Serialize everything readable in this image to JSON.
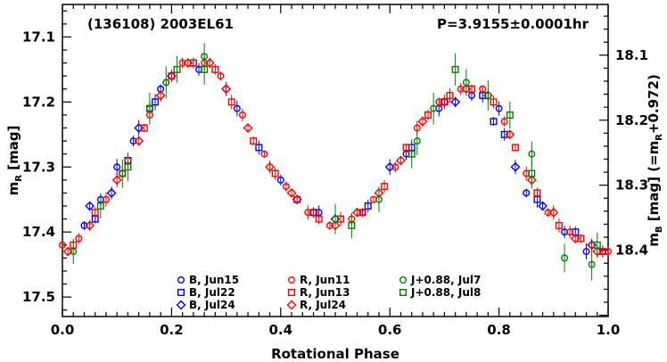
{
  "chart_data": {
    "type": "scatter",
    "annotations": {
      "object": "(136108) 2003EL61",
      "period": "P=3.9155±0.0001hr"
    },
    "xlabel": "Rotational Phase",
    "ylabel_left": {
      "main": "m",
      "sub": "R",
      "rest": " [mag]"
    },
    "ylabel_right": {
      "main": "m",
      "sub": "B",
      "rest": " [mag]  (=m",
      "sub2": "R",
      "rest2": "+0.972)"
    },
    "xlim": [
      0.0,
      1.0
    ],
    "ylim_left": [
      17.53,
      17.05
    ],
    "ylim_right": [
      18.502,
      18.022
    ],
    "x_ticks": [
      "0.0",
      "0.2",
      "0.4",
      "0.6",
      "0.8",
      "1.0"
    ],
    "y_ticks_left": [
      "17.1",
      "17.2",
      "17.3",
      "17.4",
      "17.5"
    ],
    "y_ticks_right": [
      "18.1",
      "18.2",
      "18.3",
      "18.4"
    ],
    "grid": false,
    "legend_placement": "bottom-center",
    "series": [
      {
        "name": "B, Jun15",
        "band": "B",
        "marker": "circle",
        "color": "#0000ff",
        "x": [
          0.04,
          0.07,
          0.1,
          0.13,
          0.16,
          0.18,
          0.25,
          0.32,
          0.4,
          0.47,
          0.55,
          0.63,
          0.69,
          0.75,
          0.8,
          0.85,
          0.92,
          0.96,
          0.99
        ],
        "y": [
          17.39,
          17.35,
          17.3,
          17.26,
          17.21,
          17.18,
          17.15,
          17.21,
          17.32,
          17.37,
          17.37,
          17.28,
          17.21,
          17.19,
          17.21,
          17.34,
          17.4,
          17.43,
          17.43
        ]
      },
      {
        "name": "B, Jul22",
        "band": "B",
        "marker": "square",
        "color": "#0000ff",
        "x": [
          0.06,
          0.12,
          0.17,
          0.24,
          0.36,
          0.46,
          0.56,
          0.64,
          0.7,
          0.77,
          0.79,
          0.81,
          0.87,
          0.94
        ],
        "y": [
          17.38,
          17.29,
          17.2,
          17.14,
          17.27,
          17.37,
          17.36,
          17.27,
          17.2,
          17.19,
          17.23,
          17.25,
          17.35,
          17.4
        ]
      },
      {
        "name": "B, Jul24",
        "band": "B",
        "marker": "diamond",
        "color": "#0000ff",
        "x": [
          0.05,
          0.09,
          0.14,
          0.2,
          0.3,
          0.43,
          0.5,
          0.6,
          0.72,
          0.83,
          0.88,
          0.97
        ],
        "y": [
          17.36,
          17.34,
          17.24,
          17.16,
          17.18,
          17.35,
          17.38,
          17.3,
          17.2,
          17.3,
          17.36,
          17.42
        ]
      },
      {
        "name": "R, Jun11",
        "band": "R",
        "marker": "circle",
        "color": "#ff0000",
        "x": [
          0.0,
          0.03,
          0.08,
          0.12,
          0.16,
          0.19,
          0.22,
          0.26,
          0.29,
          0.33,
          0.37,
          0.41,
          0.45,
          0.49,
          0.53,
          0.57,
          0.61,
          0.65,
          0.69,
          0.73,
          0.77,
          0.81,
          0.85,
          0.89,
          0.93,
          0.97,
          1.0
        ],
        "y": [
          17.42,
          17.41,
          17.35,
          17.29,
          17.22,
          17.17,
          17.14,
          17.14,
          17.16,
          17.22,
          17.28,
          17.33,
          17.37,
          17.39,
          17.38,
          17.35,
          17.3,
          17.24,
          17.2,
          17.18,
          17.18,
          17.23,
          17.31,
          17.37,
          17.4,
          17.42,
          17.43
        ]
      },
      {
        "name": "R, Jun13",
        "band": "R",
        "marker": "square",
        "color": "#ff0000",
        "x": [
          0.02,
          0.06,
          0.11,
          0.15,
          0.2,
          0.24,
          0.28,
          0.31,
          0.35,
          0.39,
          0.43,
          0.47,
          0.51,
          0.55,
          0.59,
          0.63,
          0.67,
          0.71,
          0.75,
          0.79,
          0.83,
          0.87,
          0.91,
          0.95,
          0.99
        ],
        "y": [
          17.42,
          17.37,
          17.31,
          17.24,
          17.16,
          17.14,
          17.15,
          17.2,
          17.26,
          17.31,
          17.35,
          17.38,
          17.38,
          17.37,
          17.33,
          17.27,
          17.22,
          17.19,
          17.18,
          17.2,
          17.27,
          17.34,
          17.39,
          17.41,
          17.43
        ]
      },
      {
        "name": "R, Jul24",
        "band": "R",
        "marker": "diamond",
        "color": "#ff0000",
        "x": [
          0.01,
          0.05,
          0.1,
          0.14,
          0.18,
          0.23,
          0.27,
          0.3,
          0.34,
          0.38,
          0.42,
          0.46,
          0.5,
          0.54,
          0.58,
          0.62,
          0.66,
          0.7,
          0.74,
          0.78,
          0.82,
          0.86,
          0.9,
          0.94,
          0.98
        ],
        "y": [
          17.43,
          17.39,
          17.32,
          17.26,
          17.19,
          17.14,
          17.14,
          17.18,
          17.24,
          17.3,
          17.34,
          17.37,
          17.39,
          17.37,
          17.34,
          17.29,
          17.23,
          17.2,
          17.18,
          17.19,
          17.25,
          17.32,
          17.37,
          17.41,
          17.43
        ]
      },
      {
        "name": "J+0.88, Jul7",
        "band": "J",
        "marker": "circle",
        "color": "#008000",
        "x": [
          0.02,
          0.11,
          0.19,
          0.26,
          0.5,
          0.58,
          0.65,
          0.68,
          0.74,
          0.78,
          0.86,
          0.92,
          0.97
        ],
        "y": [
          17.43,
          17.31,
          17.17,
          17.13,
          17.38,
          17.35,
          17.26,
          17.21,
          17.17,
          17.19,
          17.28,
          17.44,
          17.45
        ]
      },
      {
        "name": "J+0.88, Jul8",
        "band": "J",
        "marker": "square",
        "color": "#008000",
        "x": [
          0.07,
          0.12,
          0.16,
          0.21,
          0.26,
          0.53,
          0.64,
          0.72,
          0.82,
          0.86,
          0.98
        ],
        "y": [
          17.36,
          17.3,
          17.21,
          17.15,
          17.15,
          17.39,
          17.28,
          17.15,
          17.22,
          17.31,
          17.42
        ]
      }
    ]
  }
}
